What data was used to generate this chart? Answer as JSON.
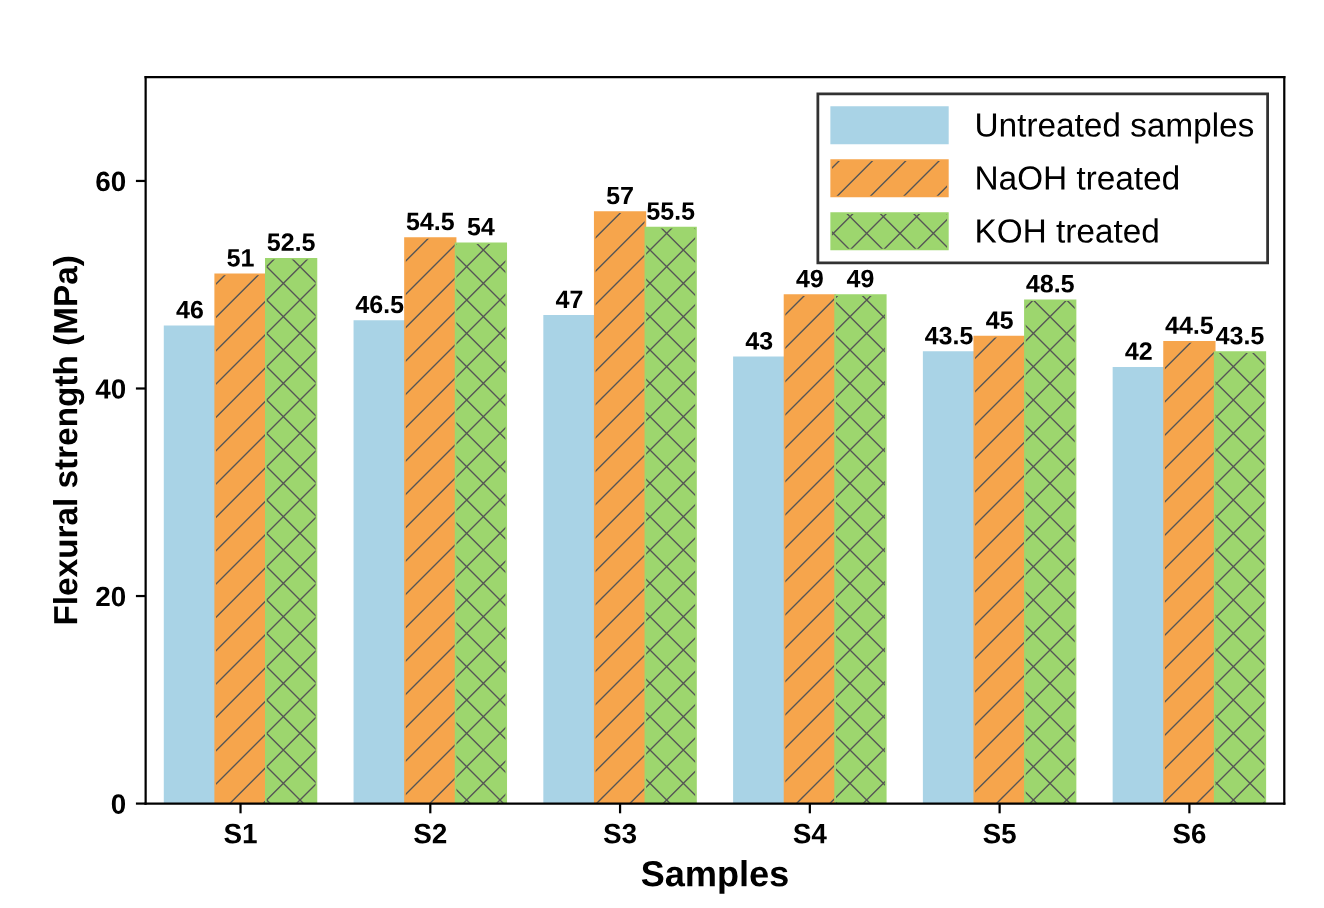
{
  "chart_data": {
    "type": "bar",
    "xlabel": "Samples",
    "ylabel": "Flexural strength (MPa)",
    "categories": [
      "S1",
      "S2",
      "S3",
      "S4",
      "S5",
      "S6"
    ],
    "series": [
      {
        "name": "Untreated samples",
        "color": "#a9d3e6",
        "values": [
          46,
          46.5,
          47,
          43,
          43.5,
          42
        ]
      },
      {
        "name": "NaOH treated",
        "color": "#f6a54c",
        "values": [
          51,
          54.5,
          57,
          49,
          45,
          44.5
        ]
      },
      {
        "name": "KOH treated",
        "color": "#9dd66e",
        "values": [
          52.5,
          54,
          55.5,
          49,
          48.5,
          43.5
        ]
      }
    ],
    "ylim": [
      0,
      70
    ],
    "yticks": [
      0,
      20,
      40,
      60
    ],
    "grid": false,
    "legend": "top right",
    "data_labels": true
  }
}
